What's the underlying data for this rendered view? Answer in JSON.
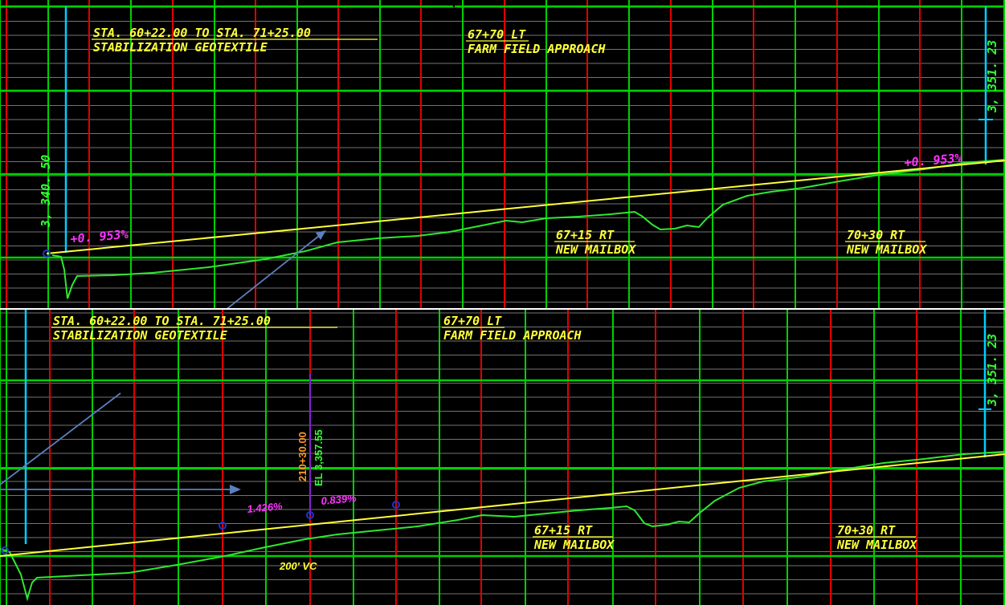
{
  "colors": {
    "background": "#000000",
    "grid_major": "#00d000",
    "grid_station": "#e00000",
    "grid_minor": "#9a9a9a",
    "proposed_profile": "#ffff3a",
    "existing_ground": "#2ee82e",
    "label_yellow": "#ffff3a",
    "grade_magenta": "#ff33ff",
    "elevation_green": "#33ff33",
    "extent_cyan": "#00cfff",
    "pvi_blue": "#2233cc",
    "pvi_line": "#8a1fd0",
    "station_orange": "#ff9a2a",
    "arrow_steel": "#5b7fbf"
  },
  "top_panel": {
    "notes": [
      {
        "line1": "STA.  60+22.00  TO  STA.  71+25.00",
        "line2": "STABILIZATION  GEOTEXTILE"
      },
      {
        "line1": "67+70  LT",
        "line2": "FARM  FIELD  APPROACH"
      },
      {
        "line1": "67+15  RT",
        "line2": "NEW  MAILBOX"
      },
      {
        "line1": "70+30  RT",
        "line2": "NEW  MAILBOX"
      }
    ],
    "start_elevation": "3, 340. 50",
    "end_elevation": "3, 351. 23",
    "grade_left": "+0. 953%",
    "grade_right": "+0. 953%"
  },
  "bottom_panel": {
    "notes": [
      {
        "line1": "STA.  60+22.00  TO  STA.  71+25.00",
        "line2": "STABILIZATION  GEOTEXTILE"
      },
      {
        "line1": "67+70  LT",
        "line2": "FARM  FIELD  APPROACH"
      },
      {
        "line1": "67+15  RT",
        "line2": "NEW  MAILBOX"
      },
      {
        "line1": "70+30  RT",
        "line2": "NEW  MAILBOX"
      }
    ],
    "end_elevation": "3, 351. 23",
    "pvi_station": "210+30.00",
    "pvi_elevation": "EL 3,357.55",
    "grade_in": "1.426%",
    "grade_out": "0.839%",
    "vertical_curve": "200' VC"
  },
  "icons": {
    "pvi_marker": "circle-marker-icon",
    "callout_arrow": "arrow-icon"
  }
}
